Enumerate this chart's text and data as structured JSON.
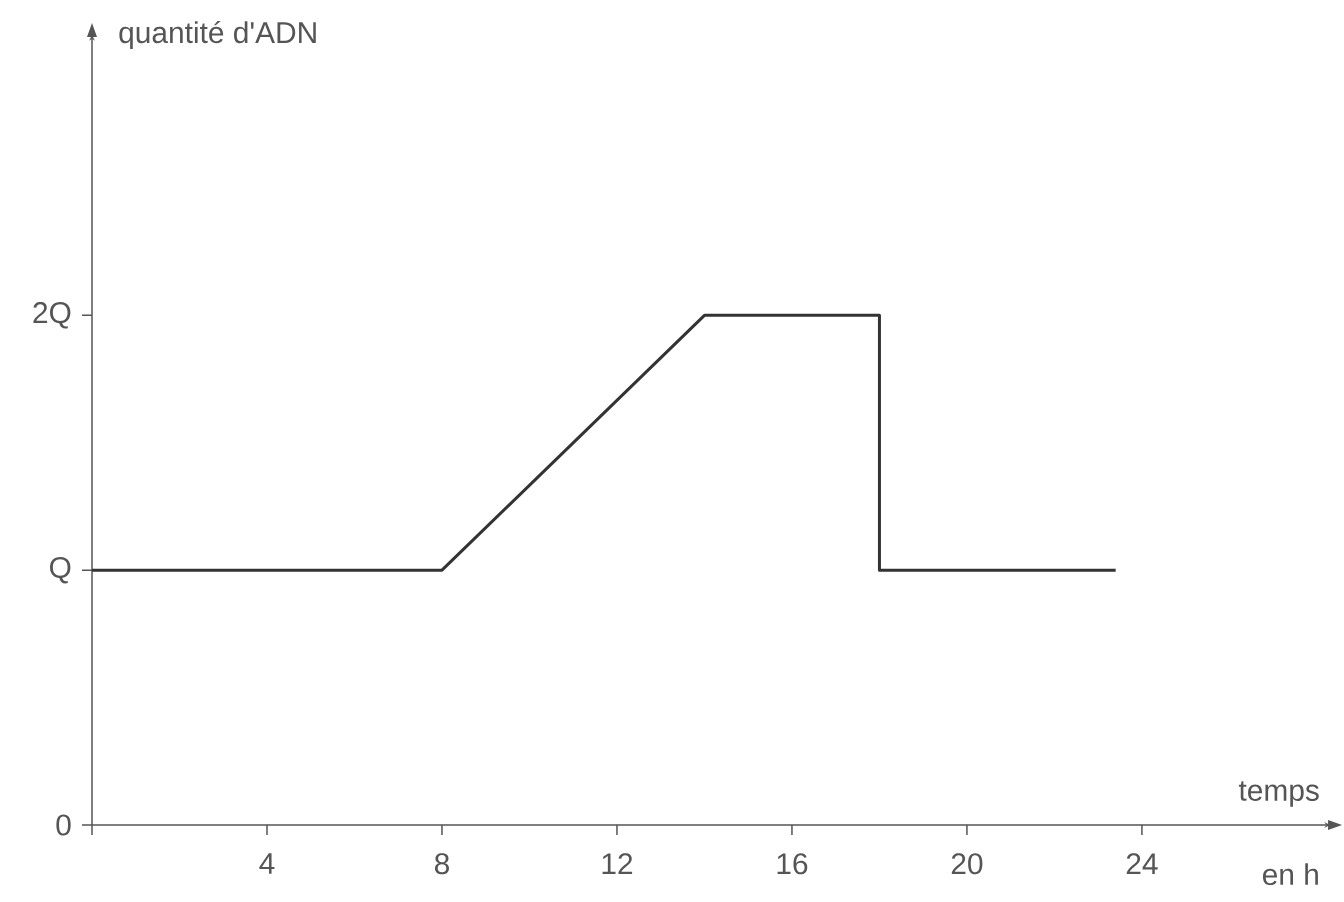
{
  "chart_data": {
    "type": "line",
    "xlabel": "temps",
    "ylabel": "quantité d'ADN",
    "annotations": [
      "en h"
    ],
    "x": [
      0,
      8,
      14,
      18,
      18,
      23.4
    ],
    "values": [
      1,
      1,
      2,
      2,
      1,
      1
    ],
    "color": "#333333",
    "xlim": [
      0,
      28.3
    ],
    "ylim": [
      0,
      3.1
    ],
    "xticks": [
      {
        "value": 0,
        "label": null
      },
      4,
      8,
      12,
      16,
      20,
      24
    ],
    "yticks": [
      0,
      {
        "value": 1,
        "label": "Q"
      },
      {
        "value": 2,
        "label": "2Q"
      }
    ],
    "grid": false
  }
}
